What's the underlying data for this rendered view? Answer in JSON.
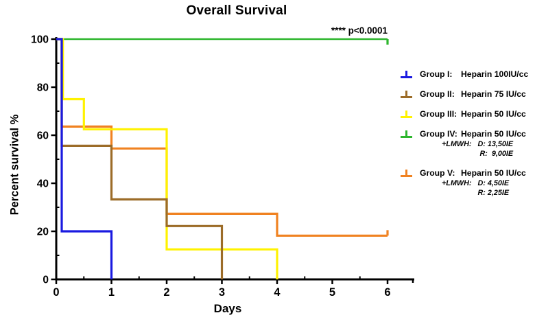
{
  "title": "Overall Survival",
  "annotation": "**** p<0.0001",
  "chart_data": {
    "type": "line",
    "subtype": "kaplan-meier-step",
    "title": "Overall Survival",
    "xlabel": "Days",
    "ylabel": "Percent survival %",
    "xlim": [
      0,
      6.5
    ],
    "ylim": [
      0,
      100
    ],
    "grid": false,
    "legend_position": "right",
    "axes": {
      "x_ticks": [
        0,
        1,
        2,
        3,
        4,
        5,
        6
      ],
      "x_minor_step": 0.5,
      "y_ticks": [
        0,
        20,
        40,
        60,
        80,
        100
      ],
      "y_minor_step": 10
    },
    "series": [
      {
        "name": "Group I",
        "color": "#1A1AE0",
        "end_tick": null,
        "steps": [
          [
            0,
            100
          ],
          [
            0.1,
            100
          ],
          [
            0.1,
            20
          ],
          [
            1,
            20
          ],
          [
            1,
            0
          ]
        ]
      },
      {
        "name": "Group II",
        "color": "#9C6C28",
        "end_tick": null,
        "steps": [
          [
            0,
            100
          ],
          [
            0.1,
            100
          ],
          [
            0.1,
            55.6
          ],
          [
            1,
            55.6
          ],
          [
            1,
            33.3
          ],
          [
            2,
            33.3
          ],
          [
            2,
            22.2
          ],
          [
            3,
            22.2
          ],
          [
            3,
            0
          ]
        ]
      },
      {
        "name": "Group III",
        "color": "#FFF200",
        "end_tick": null,
        "steps": [
          [
            0,
            100
          ],
          [
            0.12,
            100
          ],
          [
            0.12,
            75
          ],
          [
            0.5,
            75
          ],
          [
            0.5,
            62.5
          ],
          [
            2,
            62.5
          ],
          [
            2,
            12.5
          ],
          [
            4,
            12.5
          ],
          [
            4,
            0
          ]
        ]
      },
      {
        "name": "Group IV",
        "color": "#2DB62D",
        "end_tick": "down",
        "steps": [
          [
            0,
            100
          ],
          [
            6,
            100
          ]
        ]
      },
      {
        "name": "Group V",
        "color": "#F08221",
        "end_tick": "up",
        "steps": [
          [
            0,
            100
          ],
          [
            0.1,
            100
          ],
          [
            0.1,
            63.6
          ],
          [
            1,
            63.6
          ],
          [
            1,
            54.5
          ],
          [
            2,
            54.5
          ],
          [
            2,
            27.3
          ],
          [
            4,
            27.3
          ],
          [
            4,
            18.2
          ],
          [
            6,
            18.2
          ]
        ]
      }
    ],
    "draw_order": [
      4,
      3,
      2,
      1,
      0
    ]
  },
  "legend": {
    "items": [
      {
        "id": "group-i",
        "group": "Group I:",
        "treatment": "Heparin 100IU/cc",
        "color": "#1A1AE0",
        "extra": []
      },
      {
        "id": "group-ii",
        "group": "Group II:",
        "treatment": "Heparin 75 IU/cc",
        "color": "#9C6C28",
        "extra": []
      },
      {
        "id": "group-iii",
        "group": "Group III:",
        "treatment": "Heparin 50 IU/cc",
        "color": "#FFF200",
        "extra": []
      },
      {
        "id": "group-iv",
        "group": "Group IV:",
        "treatment": "Heparin 50 IU/cc",
        "color": "#2DB62D",
        "extra": [
          "+LMWH:   D: 13,50IE",
          "R:  9,00IE"
        ]
      },
      {
        "id": "group-v",
        "group": "Group V:",
        "treatment": "Heparin 50 IU/cc",
        "color": "#F08221",
        "extra": [
          "+LMWH:   D: 4,50IE",
          "R: 2,25IE"
        ]
      }
    ]
  }
}
